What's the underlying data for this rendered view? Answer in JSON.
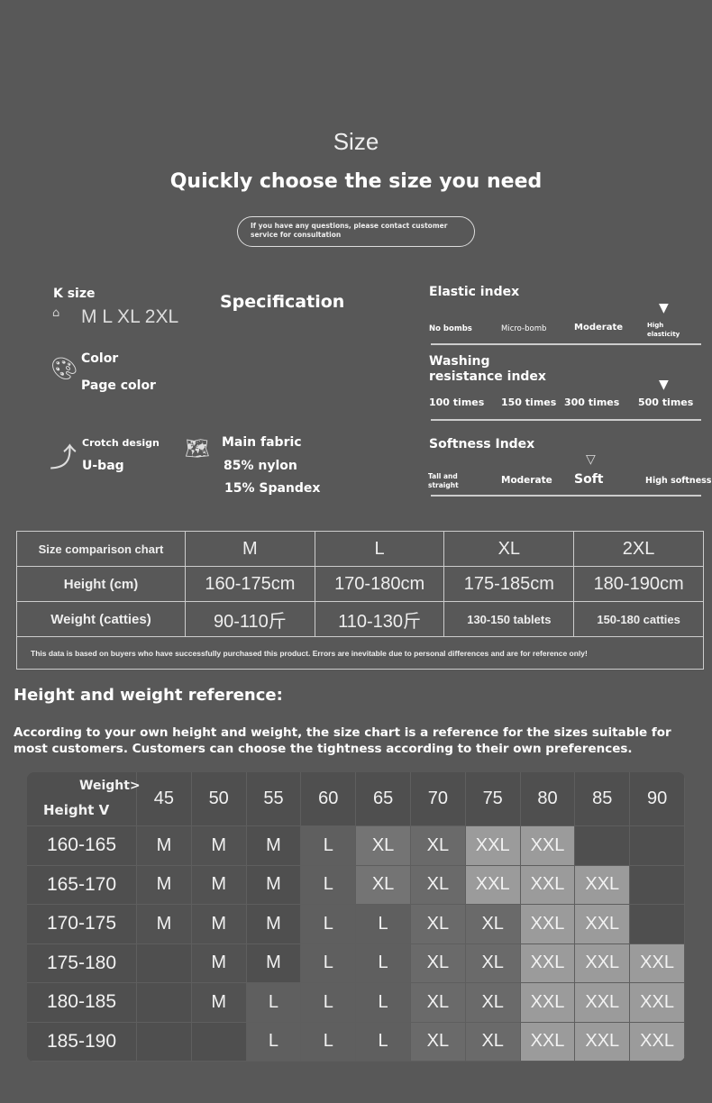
{
  "header": {
    "title": "Size",
    "subtitle": "Quickly choose the size you need",
    "contact_note": "If you have any questions, please contact customer service for consultation"
  },
  "spec": {
    "heading": "Specification",
    "size_label": "K size",
    "size_values": "M L XL 2XL",
    "color_label": "Color",
    "color_value": "Page color",
    "crotch_label": "Crotch design",
    "crotch_value": "U-bag",
    "fabric_label": "Main fabric",
    "fabric_1": "85% nylon",
    "fabric_2": "15% Spandex"
  },
  "indices": {
    "elastic": {
      "title": "Elastic index",
      "levels": [
        "No bombs",
        "Micro-bomb",
        "Moderate",
        "High elasticity"
      ],
      "selected": "High elasticity"
    },
    "washing": {
      "title": "Washing resistance index",
      "levels": [
        "100 times",
        "150 times",
        "300 times",
        "500 times"
      ],
      "selected": "500 times"
    },
    "softness": {
      "title": "Softness Index",
      "levels": [
        "Tall and straight",
        "Moderate",
        "Soft",
        "High softness"
      ],
      "selected": "Soft"
    }
  },
  "comparison": {
    "header": "Size comparison chart",
    "sizes": [
      "M",
      "L",
      "XL",
      "2XL"
    ],
    "height_label": "Height (cm)",
    "heights": [
      "160-175cm",
      "170-180cm",
      "175-185cm",
      "180-190cm"
    ],
    "weight_label": "Weight (catties)",
    "weights": [
      "90-110斤",
      "110-130斤",
      "130-150 tablets",
      "150-180 catties"
    ],
    "note": "This data is based on buyers who have successfully purchased this product. Errors are inevitable due to personal differences and are for reference only!"
  },
  "reference": {
    "title": "Height and weight reference:",
    "description": "According to your own height and weight, the size chart is a reference for the sizes suitable for most customers. Customers can choose the tightness according to their own preferences.",
    "weight_axis": "Weight>",
    "height_axis": "Height V",
    "weights": [
      "45",
      "50",
      "55",
      "60",
      "65",
      "70",
      "75",
      "80",
      "85",
      "90"
    ],
    "rows": [
      {
        "height": "160-165",
        "sizes": [
          "M",
          "M",
          "M",
          "L",
          "XL",
          "XL",
          "XXL",
          "XXL",
          "",
          ""
        ]
      },
      {
        "height": "165-170",
        "sizes": [
          "M",
          "M",
          "M",
          "L",
          "XL",
          "XL",
          "XXL",
          "XXL",
          "XXL",
          ""
        ]
      },
      {
        "height": "170-175",
        "sizes": [
          "M",
          "M",
          "M",
          "L",
          "L",
          "XL",
          "XL",
          "XXL",
          "XXL",
          ""
        ]
      },
      {
        "height": "175-180",
        "sizes": [
          "",
          "M",
          "M",
          "L",
          "L",
          "XL",
          "XL",
          "XXL",
          "XXL",
          "XXL"
        ]
      },
      {
        "height": "180-185",
        "sizes": [
          "",
          "M",
          "L",
          "L",
          "L",
          "XL",
          "XL",
          "XXL",
          "XXL",
          "XXL"
        ]
      },
      {
        "height": "185-190",
        "sizes": [
          "",
          "",
          "L",
          "L",
          "L",
          "XL",
          "XL",
          "XXL",
          "XXL",
          "XXL"
        ]
      }
    ]
  },
  "colors": {
    "background": "#585858",
    "empty": "#4f4f4f",
    "M": "#525252",
    "L": "#5f5f5f",
    "XL": "#6a6a6a",
    "XXL": "#9b9b9b"
  }
}
